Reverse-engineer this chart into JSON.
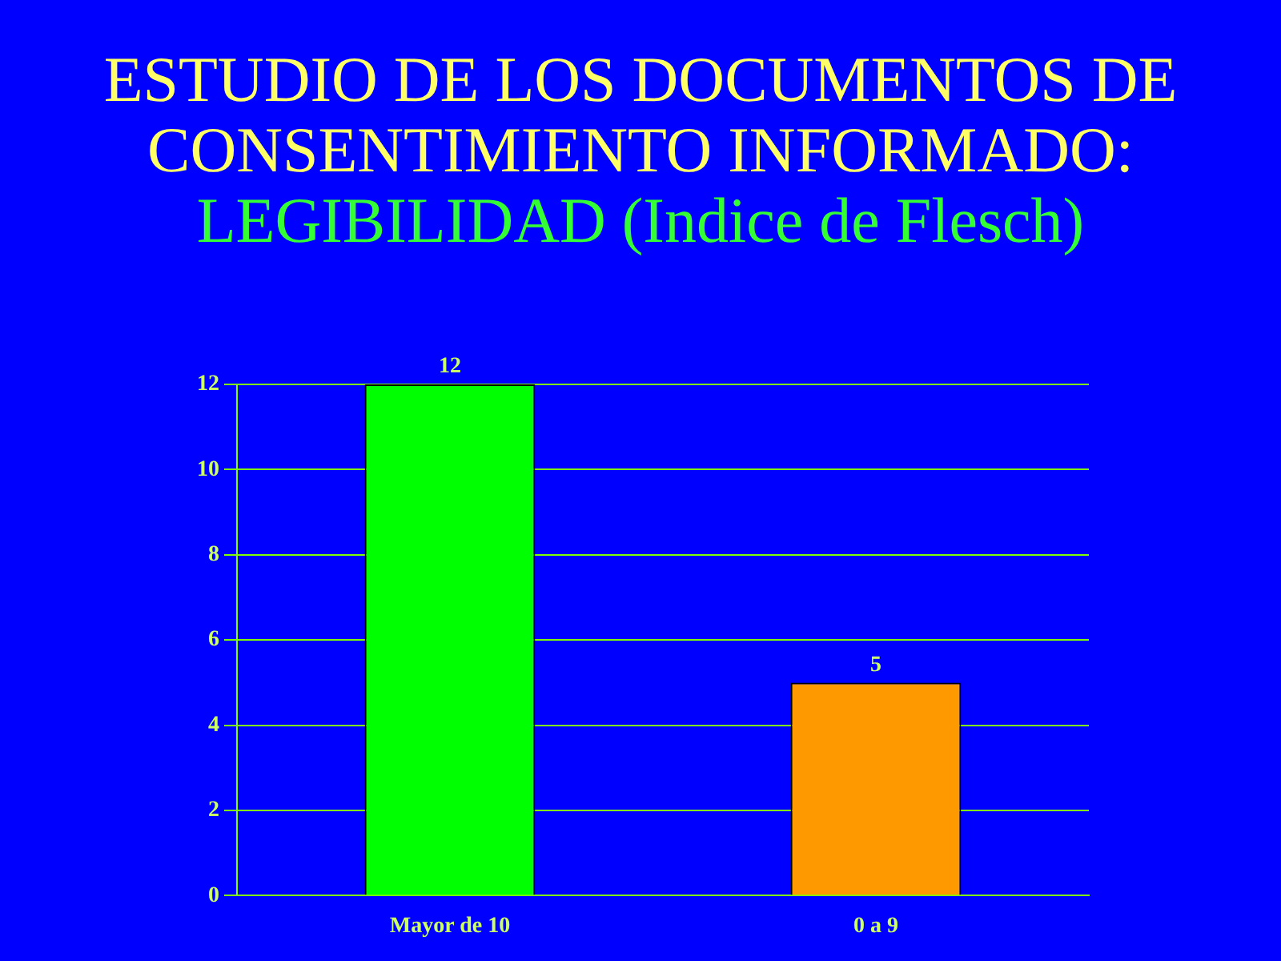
{
  "chart_data": {
    "type": "bar",
    "title": "ESTUDIO DE LOS DOCUMENTOS DE CONSENTIMIENTO INFORMADO:",
    "subtitle": "LEGIBILIDAD (Indice de Flesch)",
    "categories": [
      "Mayor de 10",
      "0 a 9"
    ],
    "values": [
      12,
      5
    ],
    "colors": [
      "#00ff00",
      "#ff9900"
    ],
    "ylim": [
      0,
      12
    ],
    "yticks": [
      0,
      2,
      4,
      6,
      8,
      10,
      12
    ],
    "grid": "y",
    "data_labels": true,
    "legend": false
  }
}
